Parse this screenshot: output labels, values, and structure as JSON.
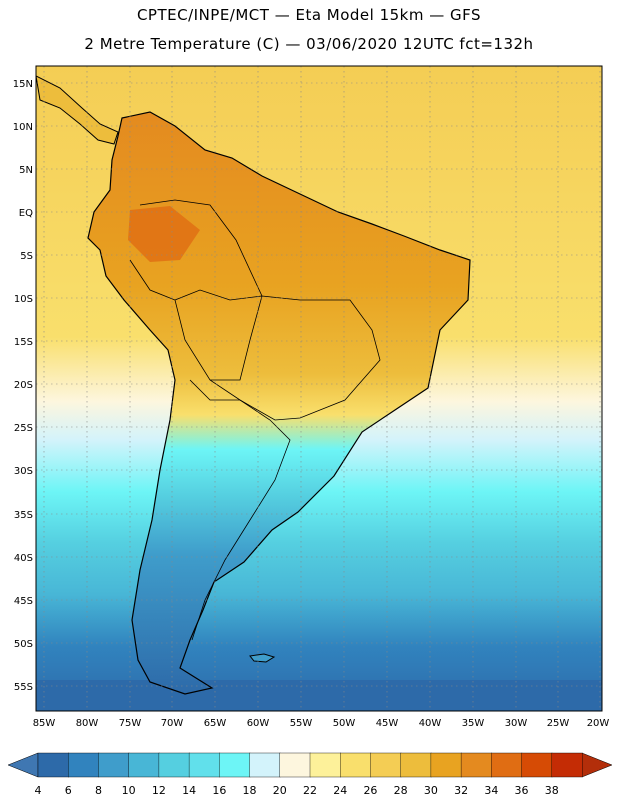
{
  "title": {
    "line1": "CPTEC/INPE/MCT —  Eta Model 15km — GFS",
    "line2": "2 Metre Temperature (C) — 03/06/2020 12UTC fct=132h"
  },
  "map": {
    "lat_labels": [
      "15N",
      "10N",
      "5N",
      "EQ",
      "5S",
      "10S",
      "15S",
      "20S",
      "25S",
      "30S",
      "35S",
      "40S",
      "45S",
      "50S",
      "55S"
    ],
    "lon_labels": [
      "85W",
      "80W",
      "75W",
      "70W",
      "65W",
      "60W",
      "55W",
      "50W",
      "45W",
      "40W",
      "35W",
      "30W",
      "25W",
      "20W"
    ],
    "lon_range": [
      -86,
      -20
    ],
    "lat_range": [
      -59,
      16
    ]
  },
  "legend": {
    "values": [
      "4",
      "6",
      "8",
      "10",
      "12",
      "14",
      "16",
      "18",
      "20",
      "22",
      "24",
      "26",
      "28",
      "30",
      "32",
      "34",
      "36",
      "38"
    ],
    "colors": [
      "#2d6aa9",
      "#3183be",
      "#3f9dcb",
      "#48b6d6",
      "#55cfe0",
      "#61e0eb",
      "#6df5f6",
      "#d3f3fb",
      "#fdf6de",
      "#fdf19a",
      "#f9df6c",
      "#f4cd54",
      "#edbd3c",
      "#e8a321",
      "#e48a1f",
      "#e06d13",
      "#d64b05",
      "#c42c05"
    ],
    "low_color": "#3f77b2",
    "high_color": "#b32e0a"
  }
}
